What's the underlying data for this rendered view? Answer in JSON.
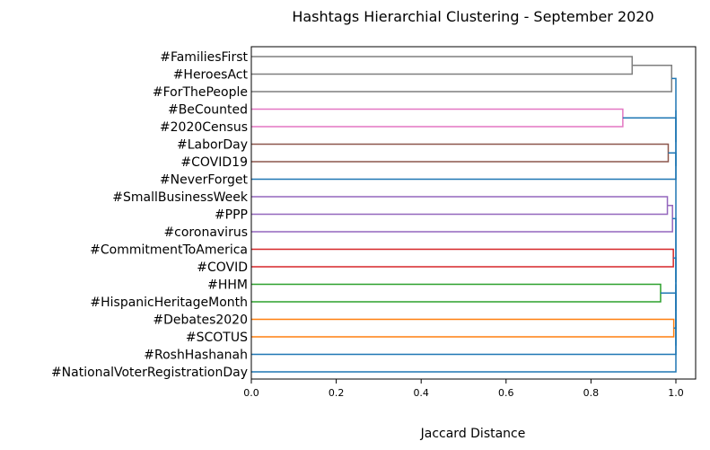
{
  "chart_data": {
    "type": "dendrogram",
    "orientation": "horizontal",
    "title": "Hashtags Hierarchial Clustering - September 2020",
    "xlabel": "Jaccard Distance",
    "ylabel": "",
    "xlim": [
      0.0,
      1.05
    ],
    "xticks": [
      "0.0",
      "0.2",
      "0.4",
      "0.6",
      "0.8",
      "1.0"
    ],
    "xtick_values": [
      0.0,
      0.2,
      0.4,
      0.6,
      0.8,
      1.0
    ],
    "grid": false,
    "leaves": [
      "#FamiliesFirst",
      "#HeroesAct",
      "#ForThePeople",
      "#BeCounted",
      "#2020Census",
      "#LaborDay",
      "#COVID19",
      "#NeverForget",
      "#SmallBusinessWeek",
      "#PPP",
      "#coronavirus",
      "#CommitmentToAmerica",
      "#COVID",
      "#HHM",
      "#HispanicHeritageMonth",
      "#Debates2020",
      "#SCOTUS",
      "#RoshHashanah",
      "#NationalVoterRegistrationDay"
    ],
    "merges": [
      {
        "id": "g1",
        "a": "#FamiliesFirst",
        "b": "#HeroesAct",
        "distance": 0.897,
        "color": "#7f7f7f"
      },
      {
        "id": "g2",
        "a": "g1",
        "b": "#ForThePeople",
        "distance": 0.99,
        "color": "#7f7f7f"
      },
      {
        "id": "p1",
        "a": "#BeCounted",
        "b": "#2020Census",
        "distance": 0.875,
        "color": "#e377c2"
      },
      {
        "id": "br1",
        "a": "#LaborDay",
        "b": "#COVID19",
        "distance": 0.982,
        "color": "#8c564b"
      },
      {
        "id": "pu1",
        "a": "#SmallBusinessWeek",
        "b": "#PPP",
        "distance": 0.98,
        "color": "#9467bd"
      },
      {
        "id": "pu2",
        "a": "pu1",
        "b": "#coronavirus",
        "distance": 0.992,
        "color": "#9467bd"
      },
      {
        "id": "r1",
        "a": "#CommitmentToAmerica",
        "b": "#COVID",
        "distance": 0.994,
        "color": "#d62728"
      },
      {
        "id": "gr1",
        "a": "#HHM",
        "b": "#HispanicHeritageMonth",
        "distance": 0.964,
        "color": "#2ca02c"
      },
      {
        "id": "o1",
        "a": "#Debates2020",
        "b": "#SCOTUS",
        "distance": 0.995,
        "color": "#ff7f0e"
      },
      {
        "id": "b1",
        "a": "br1",
        "b": "#NeverForget",
        "distance": 1.0,
        "color": "#1f77b4"
      },
      {
        "id": "b2",
        "a": "p1",
        "b": "b1",
        "distance": 1.0,
        "color": "#1f77b4"
      },
      {
        "id": "b3",
        "a": "g2",
        "b": "b2",
        "distance": 1.0,
        "color": "#1f77b4"
      },
      {
        "id": "b4",
        "a": "gr1",
        "b": "o1",
        "distance": 1.0,
        "color": "#1f77b4"
      },
      {
        "id": "b5",
        "a": "r1",
        "b": "b4",
        "distance": 1.0,
        "color": "#1f77b4"
      },
      {
        "id": "b6",
        "a": "b5",
        "b": "#RoshHashanah",
        "distance": 1.0,
        "color": "#1f77b4"
      },
      {
        "id": "b7",
        "a": "b6",
        "b": "#NationalVoterRegistrationDay",
        "distance": 1.0,
        "color": "#1f77b4"
      },
      {
        "id": "b8",
        "a": "pu2",
        "b": "b7",
        "distance": 1.0,
        "color": "#1f77b4"
      },
      {
        "id": "root",
        "a": "b3",
        "b": "b8",
        "distance": 1.0,
        "color": "#1f77b4"
      }
    ]
  }
}
